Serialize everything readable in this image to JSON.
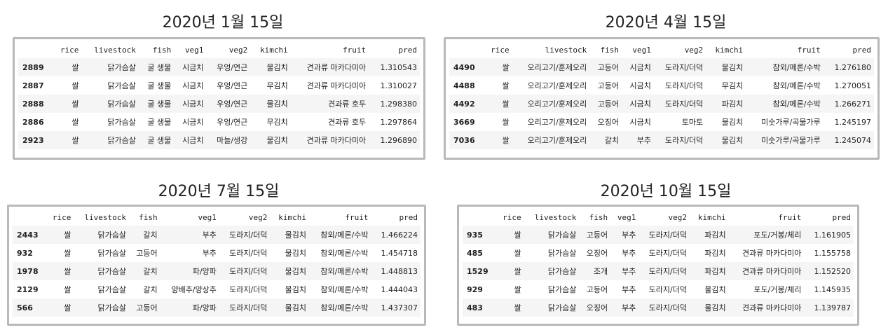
{
  "columns": [
    "",
    "rice",
    "livestock",
    "fish",
    "veg1",
    "veg2",
    "kimchi",
    "fruit",
    "pred"
  ],
  "panels": [
    {
      "title": "2020년 1월 15일",
      "rows": [
        [
          "2889",
          "쌀",
          "닭가슴살",
          "굴 생물",
          "시금치",
          "우엉/연근",
          "물김치",
          "견과류 마카다미아",
          "1.310543"
        ],
        [
          "2887",
          "쌀",
          "닭가슴살",
          "굴 생물",
          "시금치",
          "우엉/연근",
          "무김치",
          "견과류 마카다미아",
          "1.310027"
        ],
        [
          "2888",
          "쌀",
          "닭가슴살",
          "굴 생물",
          "시금치",
          "우엉/연근",
          "물김치",
          "견과류 호두",
          "1.298380"
        ],
        [
          "2886",
          "쌀",
          "닭가슴살",
          "굴 생물",
          "시금치",
          "우엉/연근",
          "무김치",
          "견과류 호두",
          "1.297864"
        ],
        [
          "2923",
          "쌀",
          "닭가슴살",
          "굴 생물",
          "시금치",
          "마늘/생강",
          "물김치",
          "견과류 마카다미아",
          "1.296890"
        ]
      ]
    },
    {
      "title": "2020년 4월 15일",
      "rows": [
        [
          "4490",
          "쌀",
          "오리고기/훈제오리",
          "고등어",
          "시금치",
          "도라지/더덕",
          "물김치",
          "참외/메론/수박",
          "1.276180"
        ],
        [
          "4488",
          "쌀",
          "오리고기/훈제오리",
          "고등어",
          "시금치",
          "도라지/더덕",
          "무김치",
          "참외/메론/수박",
          "1.270051"
        ],
        [
          "4492",
          "쌀",
          "오리고기/훈제오리",
          "고등어",
          "시금치",
          "도라지/더덕",
          "파김치",
          "참외/메론/수박",
          "1.266271"
        ],
        [
          "3669",
          "쌀",
          "오리고기/훈제오리",
          "오징어",
          "시금치",
          "토마토",
          "물김치",
          "미숫가루/곡물가루",
          "1.245197"
        ],
        [
          "7036",
          "쌀",
          "오리고기/훈제오리",
          "갈치",
          "부추",
          "도라지/더덕",
          "물김치",
          "미숫가루/곡물가루",
          "1.245074"
        ]
      ]
    },
    {
      "title": "2020년 7월 15일",
      "rows": [
        [
          "2443",
          "쌀",
          "닭가슴살",
          "갈치",
          "부추",
          "도라지/더덕",
          "물김치",
          "참외/메론/수박",
          "1.466224"
        ],
        [
          "932",
          "쌀",
          "닭가슴살",
          "고등어",
          "부추",
          "도라지/더덕",
          "물김치",
          "참외/메론/수박",
          "1.454718"
        ],
        [
          "1978",
          "쌀",
          "닭가슴살",
          "갈치",
          "파/양파",
          "도라지/더덕",
          "물김치",
          "참외/메론/수박",
          "1.448813"
        ],
        [
          "2129",
          "쌀",
          "닭가슴살",
          "갈치",
          "양배추/양상추",
          "도라지/더덕",
          "물김치",
          "참외/메론/수박",
          "1.444043"
        ],
        [
          "566",
          "쌀",
          "닭가슴살",
          "고등어",
          "파/양파",
          "도라지/더덕",
          "물김치",
          "참외/메론/수박",
          "1.437307"
        ]
      ]
    },
    {
      "title": "2020년 10월 15일",
      "rows": [
        [
          "935",
          "쌀",
          "닭가슴살",
          "고등어",
          "부추",
          "도라지/더덕",
          "파김치",
          "포도/거봉/체리",
          "1.161905"
        ],
        [
          "485",
          "쌀",
          "닭가슴살",
          "오징어",
          "부추",
          "도라지/더덕",
          "파김치",
          "견과류 마카다미아",
          "1.155758"
        ],
        [
          "1529",
          "쌀",
          "닭가슴살",
          "조개",
          "부추",
          "도라지/더덕",
          "파김치",
          "견과류 마카다미아",
          "1.152520"
        ],
        [
          "929",
          "쌀",
          "닭가슴살",
          "고등어",
          "부추",
          "도라지/더덕",
          "물김치",
          "포도/거봉/체리",
          "1.145935"
        ],
        [
          "483",
          "쌀",
          "닭가슴살",
          "오징어",
          "부추",
          "도라지/더덕",
          "물김치",
          "견과류 마카다미아",
          "1.139787"
        ]
      ]
    }
  ]
}
